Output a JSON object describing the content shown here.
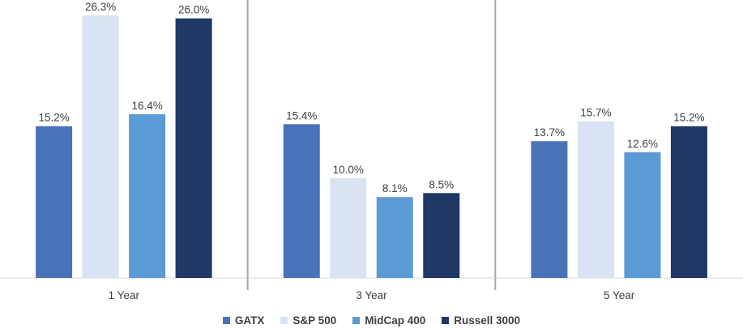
{
  "chart_data": {
    "type": "bar",
    "categories": [
      "1 Year",
      "3 Year",
      "5 Year"
    ],
    "series": [
      {
        "name": "GATX",
        "values": [
          15.2,
          15.4,
          13.7
        ],
        "labels": [
          "15.2%",
          "15.4%",
          "13.7%"
        ],
        "color": "#4a72b8"
      },
      {
        "name": "S&P 500",
        "values": [
          26.3,
          10.0,
          15.7
        ],
        "labels": [
          "26.3%",
          "10.0%",
          "15.7%"
        ],
        "color": "#d9e3f3"
      },
      {
        "name": "MidCap 400",
        "values": [
          16.4,
          8.1,
          12.6
        ],
        "labels": [
          "16.4%",
          "8.1%",
          "12.6%"
        ],
        "color": "#5b9bd5"
      },
      {
        "name": "Russell 3000",
        "values": [
          26.0,
          8.5,
          15.2
        ],
        "labels": [
          "26.0%",
          "8.5%",
          "15.2%"
        ],
        "color": "#203864"
      }
    ],
    "ylim": [
      0,
      26.3
    ],
    "grid": false,
    "legend_position": "bottom"
  }
}
